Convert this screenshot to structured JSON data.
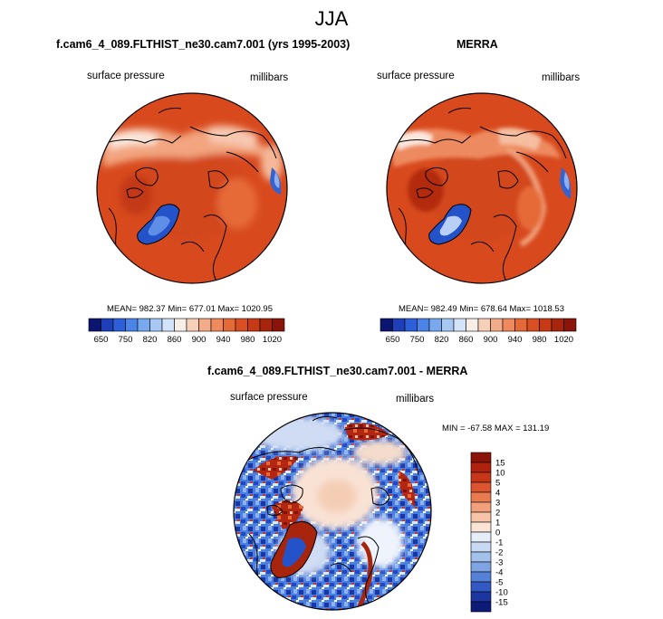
{
  "figure": {
    "title": "JJA"
  },
  "panels": [
    {
      "title": "f.cam6_4_089.FLTHIST_ne30.cam7.001 (yrs 1995-2003)",
      "var_label": "surface pressure",
      "units_label": "millibars",
      "stats_text": "MEAN= 982.37  Min= 677.01  Max= 1020.95"
    },
    {
      "title": "MERRA",
      "var_label": "surface pressure",
      "units_label": "millibars",
      "stats_text": "MEAN= 982.49  Min= 678.64  Max= 1018.53"
    },
    {
      "title": "f.cam6_4_089.FLTHIST_ne30.cam7.001 - MERRA",
      "var_label": "surface pressure",
      "units_label": "millibars",
      "stats_text": "MIN = -67.58 MAX = 131.19"
    }
  ],
  "chart_data": [
    {
      "type": "heatmap",
      "projection": "north polar stereographic",
      "title": "f.cam6_4_089.FLTHIST_ne30.cam7.001 (yrs 1995-2003)",
      "variable": "surface pressure",
      "units": "millibars",
      "mean": 982.37,
      "min": 677.01,
      "max": 1020.95,
      "colorbar_ticks": [
        "650",
        "750",
        "820",
        "860",
        "900",
        "940",
        "980",
        "1020"
      ],
      "colorbar_colors": [
        "#0b1470",
        "#1f3fb8",
        "#2d5fd9",
        "#4a84e8",
        "#78a9ef",
        "#a8c8f4",
        "#d4e4f8",
        "#f7eee8",
        "#f6d0b8",
        "#f2ac8a",
        "#ee8a5e",
        "#e66a38",
        "#d94e22",
        "#c63a16",
        "#a8250d",
        "#8a1409"
      ]
    },
    {
      "type": "heatmap",
      "projection": "north polar stereographic",
      "title": "MERRA",
      "variable": "surface pressure",
      "units": "millibars",
      "mean": 982.49,
      "min": 678.64,
      "max": 1018.53,
      "colorbar_ticks": [
        "650",
        "750",
        "820",
        "860",
        "900",
        "940",
        "980",
        "1020"
      ],
      "colorbar_colors": [
        "#0b1470",
        "#1f3fb8",
        "#2d5fd9",
        "#4a84e8",
        "#78a9ef",
        "#a8c8f4",
        "#d4e4f8",
        "#f7eee8",
        "#f6d0b8",
        "#f2ac8a",
        "#ee8a5e",
        "#e66a38",
        "#d94e22",
        "#c63a16",
        "#a8250d",
        "#8a1409"
      ]
    },
    {
      "type": "heatmap",
      "projection": "north polar stereographic",
      "title": "f.cam6_4_089.FLTHIST_ne30.cam7.001 - MERRA",
      "variable": "surface pressure",
      "units": "millibars",
      "min": -67.58,
      "max": 131.19,
      "colorbar_orientation": "vertical",
      "colorbar_ticks": [
        "15",
        "10",
        "5",
        "4",
        "3",
        "2",
        "1",
        "0",
        "-1",
        "-2",
        "-3",
        "-4",
        "-5",
        "-10",
        "-15"
      ],
      "colorbar_colors": [
        "#8a1409",
        "#b0210e",
        "#c8361a",
        "#dc5430",
        "#ea7a50",
        "#f2a07c",
        "#f7c4a8",
        "#fbe4d4",
        "#e6eef9",
        "#c7d9f3",
        "#a4c1ec",
        "#7ea4e3",
        "#5582d9",
        "#3259c4",
        "#1d35a0",
        "#0c1a78"
      ]
    }
  ]
}
